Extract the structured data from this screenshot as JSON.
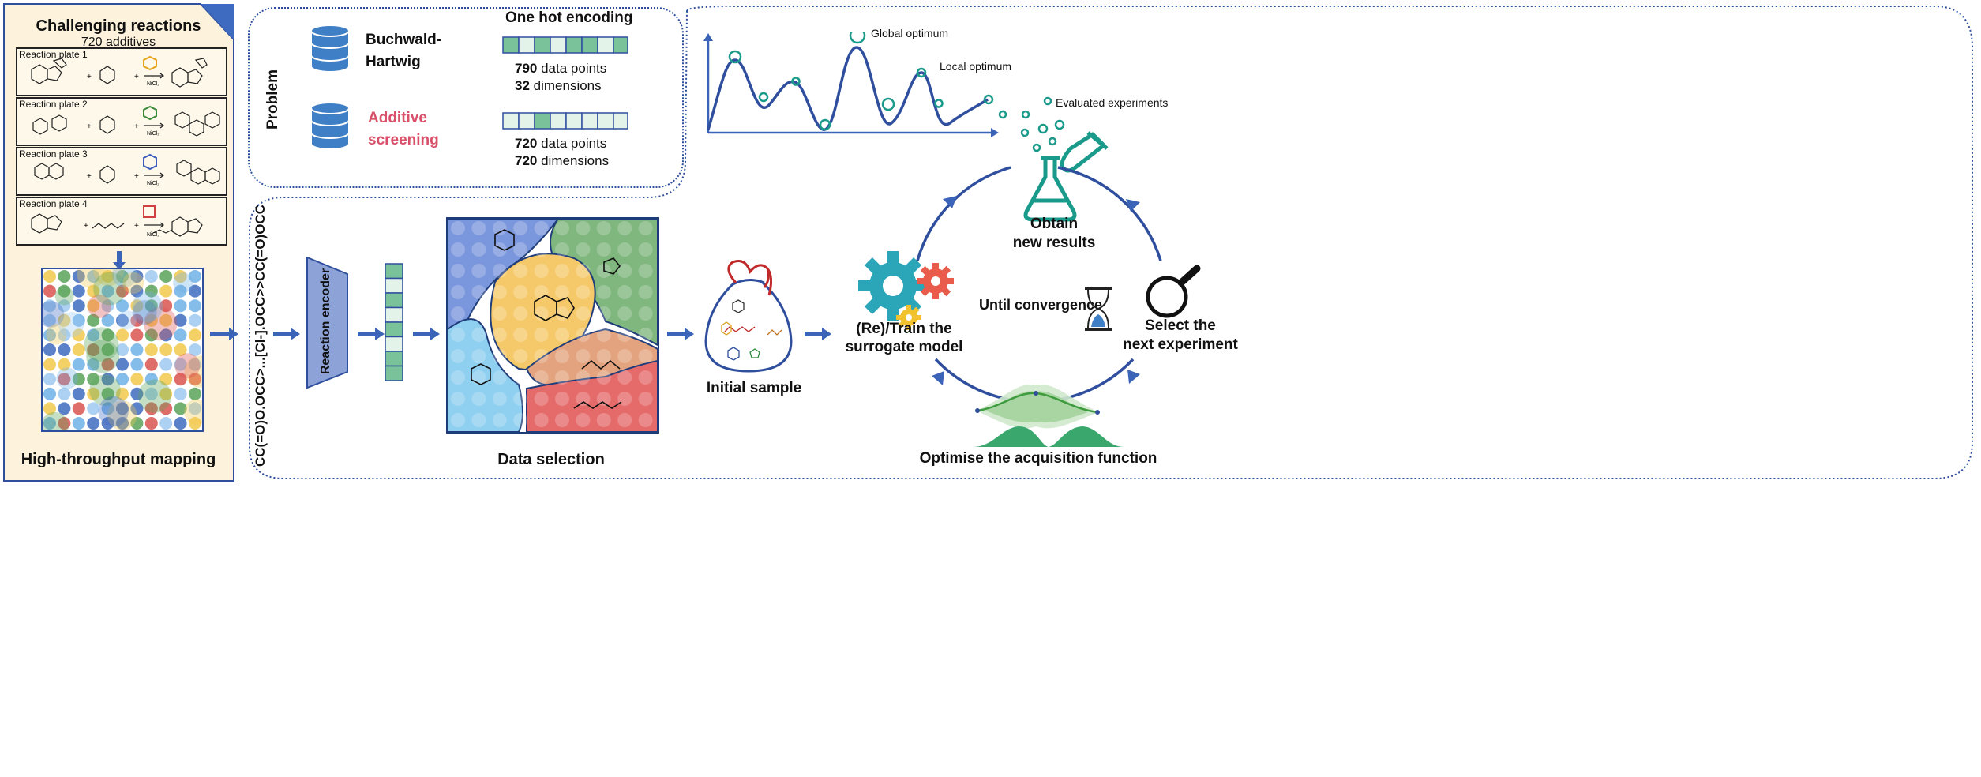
{
  "left_panel": {
    "title": "Challenging reactions",
    "subtitle": "720 additives",
    "plates": [
      {
        "label": "Reaction plate 1"
      },
      {
        "label": "Reaction plate 2"
      },
      {
        "label": "Reaction plate 3"
      },
      {
        "label": "Reaction plate 4"
      }
    ],
    "reagent_label": "NiCl₂",
    "footer": "High-throughput mapping"
  },
  "problem": {
    "label": "Problem",
    "header": "One hot encoding",
    "datasets": [
      {
        "name_line1": "Buchwald-",
        "name_line2": "Hartwig",
        "points_num": "790",
        "points_text": " data points",
        "dims_num": "32",
        "dims_text": " dimensions"
      },
      {
        "name_line1": "Additive",
        "name_line2": "screening",
        "points_num": "720",
        "points_text": " data points",
        "dims_num": "720",
        "dims_text": " dimensions"
      }
    ],
    "accent_color": "#d9506a"
  },
  "pipeline": {
    "smiles": "CC(=O)O.OCC>...[Cl-].OCC>>CC(=O)OCC",
    "encoder_label": "Reaction encoder",
    "data_selection_label": "Data selection",
    "initial_sample_label": "Initial sample"
  },
  "optimization": {
    "global_optimum": "Global optimum",
    "local_optimum": "Local optimum",
    "evaluated": "Evaluated experiments",
    "obtain_line1": "Obtain",
    "obtain_line2": "new results",
    "train_line1": "(Re)/Train the",
    "train_line2": "surrogate model",
    "until": "Until convergence",
    "select_line1": "Select the",
    "select_line2": "next experiment",
    "acquisition": "Optimise the acquisition function"
  },
  "colors": {
    "blue": "#2f4f9e",
    "teal": "#1a9a8a",
    "cream": "#fdf3dc",
    "green": "#79c29a"
  }
}
